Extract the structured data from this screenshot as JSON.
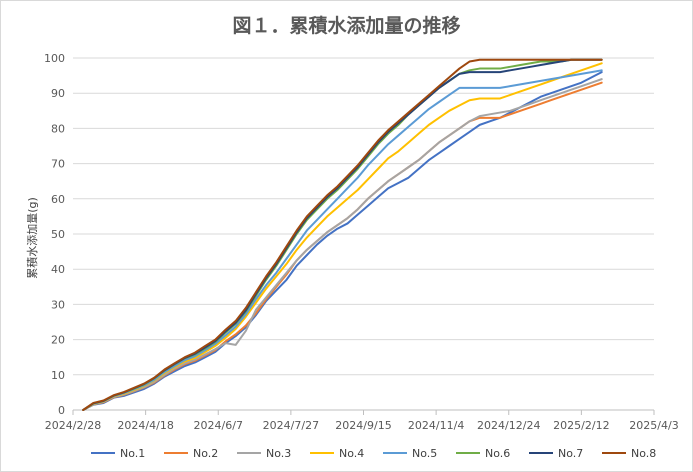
{
  "chart_data": {
    "type": "line",
    "title": "図１．累積水添加量の推移",
    "xlabel": "",
    "ylabel": "累積水添加量(g)",
    "ylim": [
      0,
      100
    ],
    "yticks": [
      0,
      10,
      20,
      30,
      40,
      50,
      60,
      70,
      80,
      90,
      100
    ],
    "xlim": [
      "2024-02-28",
      "2025-04-03"
    ],
    "xticks": [
      "2024/2/28",
      "2024/4/18",
      "2024/6/7",
      "2024/7/27",
      "2024/9/15",
      "2024/11/4",
      "2024/12/24",
      "2025/2/12",
      "2025/4/3"
    ],
    "grid": "horizontal",
    "legend": "bottom",
    "x": [
      "2024-03-06",
      "2024-03-13",
      "2024-03-20",
      "2024-03-27",
      "2024-04-03",
      "2024-04-10",
      "2024-04-17",
      "2024-04-24",
      "2024-05-01",
      "2024-05-08",
      "2024-05-15",
      "2024-05-22",
      "2024-05-29",
      "2024-06-05",
      "2024-06-12",
      "2024-06-19",
      "2024-06-26",
      "2024-07-03",
      "2024-07-10",
      "2024-07-17",
      "2024-07-24",
      "2024-07-31",
      "2024-08-07",
      "2024-08-14",
      "2024-08-21",
      "2024-08-28",
      "2024-09-04",
      "2024-09-11",
      "2024-09-18",
      "2024-09-25",
      "2024-10-02",
      "2024-10-09",
      "2024-10-16",
      "2024-10-23",
      "2024-10-30",
      "2024-11-06",
      "2024-11-13",
      "2024-11-20",
      "2024-11-27",
      "2024-12-04",
      "2024-12-11",
      "2024-12-18",
      "2024-12-25",
      "2025-01-01",
      "2025-01-08",
      "2025-01-15",
      "2025-01-22",
      "2025-01-29",
      "2025-02-05",
      "2025-02-12",
      "2025-02-19",
      "2025-02-26"
    ],
    "series": [
      {
        "name": "No.1",
        "color": "#4472C4",
        "values": [
          0,
          1.5,
          2.0,
          3.5,
          4.0,
          5.0,
          6.0,
          7.5,
          9.5,
          11.0,
          12.5,
          13.5,
          15.0,
          16.5,
          19.0,
          21.0,
          23.5,
          27.0,
          31.0,
          34.0,
          37.0,
          41.0,
          44.0,
          47.0,
          49.5,
          51.5,
          53.0,
          55.5,
          58.0,
          60.5,
          63.0,
          64.5,
          66.0,
          68.5,
          71.0,
          73.0,
          75.0,
          77.0,
          79.0,
          81.0,
          82.0,
          83.0,
          84.5,
          86.0,
          87.5,
          89.0,
          90.0,
          91.0,
          92.0,
          93.0,
          94.5,
          96.0
        ]
      },
      {
        "name": "No.2",
        "color": "#ED7D31",
        "values": [
          0,
          1.6,
          2.2,
          3.6,
          4.3,
          5.3,
          6.4,
          7.8,
          9.8,
          11.5,
          13.0,
          14.0,
          15.5,
          17.0,
          19.5,
          21.5,
          24.0,
          27.5,
          31.5,
          35.0,
          38.5,
          42.5,
          45.5,
          48.0,
          50.5,
          52.5,
          54.5,
          57.0,
          60.0,
          62.5,
          65.0,
          67.0,
          69.0,
          71.0,
          73.5,
          76.0,
          78.0,
          80.0,
          82.0,
          83.0,
          83.0,
          83.0,
          84.0,
          85.0,
          86.0,
          87.0,
          88.0,
          89.0,
          90.0,
          91.0,
          92.0,
          93.0
        ]
      },
      {
        "name": "No.3",
        "color": "#A5A5A5",
        "values": [
          0,
          1.6,
          2.3,
          3.7,
          4.4,
          5.4,
          6.5,
          8.0,
          10.0,
          11.8,
          13.3,
          14.3,
          15.8,
          17.3,
          19.0,
          18.5,
          22.5,
          28.5,
          32.0,
          35.5,
          39.0,
          42.5,
          45.5,
          48.0,
          50.5,
          52.5,
          54.5,
          57.0,
          60.0,
          62.5,
          65.0,
          67.0,
          69.0,
          71.0,
          73.5,
          76.0,
          78.0,
          80.0,
          82.0,
          83.5,
          84.0,
          84.5,
          85.0,
          86.0,
          87.0,
          88.0,
          89.0,
          90.0,
          91.0,
          92.0,
          93.0,
          94.0
        ]
      },
      {
        "name": "No.4",
        "color": "#FFC000",
        "values": [
          0,
          1.7,
          2.4,
          3.9,
          4.6,
          5.7,
          6.8,
          8.4,
          10.5,
          12.2,
          13.8,
          14.8,
          16.5,
          18.2,
          20.5,
          23.0,
          26.5,
          30.5,
          34.5,
          38.0,
          41.5,
          45.5,
          49.0,
          52.0,
          55.0,
          57.5,
          60.0,
          62.5,
          65.5,
          68.5,
          71.5,
          73.5,
          76.0,
          78.5,
          81.0,
          83.0,
          85.0,
          86.5,
          88.0,
          88.5,
          88.5,
          88.5,
          89.5,
          90.5,
          91.5,
          92.5,
          93.5,
          94.5,
          95.5,
          96.5,
          97.5,
          98.5
        ]
      },
      {
        "name": "No.5",
        "color": "#5B9BD5",
        "values": [
          0,
          1.8,
          2.5,
          4.0,
          4.8,
          5.9,
          7.0,
          8.6,
          10.8,
          12.5,
          14.2,
          15.3,
          17.0,
          18.8,
          21.2,
          23.7,
          27.2,
          31.5,
          35.5,
          39.0,
          43.0,
          47.0,
          51.0,
          54.0,
          57.0,
          60.0,
          63.0,
          66.0,
          69.5,
          72.5,
          75.5,
          78.0,
          80.5,
          83.0,
          85.5,
          87.5,
          89.5,
          91.5,
          91.5,
          91.5,
          91.5,
          91.5,
          92.0,
          92.5,
          93.0,
          93.5,
          94.0,
          94.5,
          95.0,
          95.5,
          96.0,
          96.5
        ]
      },
      {
        "name": "No.6",
        "color": "#70AD47",
        "values": [
          0,
          1.9,
          2.6,
          4.1,
          5.0,
          6.1,
          7.3,
          9.0,
          11.2,
          13.0,
          14.7,
          15.8,
          17.5,
          19.3,
          22.0,
          24.5,
          28.0,
          32.5,
          37.0,
          41.0,
          45.5,
          50.0,
          54.0,
          57.0,
          60.0,
          62.5,
          65.5,
          68.5,
          72.0,
          75.5,
          78.5,
          81.0,
          84.0,
          86.5,
          89.0,
          91.5,
          93.5,
          95.5,
          96.5,
          97.0,
          97.0,
          97.0,
          97.5,
          98.0,
          98.5,
          99.0,
          99.0,
          99.0,
          99.5,
          99.5,
          99.5,
          99.5
        ]
      },
      {
        "name": "No.7",
        "color": "#264478",
        "values": [
          0,
          1.9,
          2.6,
          4.1,
          5.0,
          6.2,
          7.4,
          9.1,
          11.3,
          13.1,
          14.8,
          16.0,
          17.8,
          19.6,
          22.3,
          24.8,
          28.3,
          33.0,
          37.5,
          41.5,
          46.0,
          50.5,
          54.5,
          57.5,
          60.5,
          63.0,
          66.0,
          69.0,
          72.5,
          76.0,
          79.0,
          81.5,
          84.0,
          86.5,
          89.0,
          91.5,
          93.5,
          95.5,
          96.0,
          96.0,
          96.0,
          96.0,
          96.5,
          97.0,
          97.5,
          98.0,
          98.5,
          99.0,
          99.5,
          99.5,
          99.5,
          99.5
        ]
      },
      {
        "name": "No.8",
        "color": "#9E480E",
        "values": [
          0,
          2.0,
          2.7,
          4.2,
          5.1,
          6.3,
          7.5,
          9.2,
          11.5,
          13.3,
          15.0,
          16.3,
          18.2,
          20.0,
          22.8,
          25.3,
          29.0,
          33.5,
          38.0,
          42.0,
          46.5,
          51.0,
          55.0,
          58.0,
          61.0,
          63.5,
          66.5,
          69.5,
          73.0,
          76.5,
          79.5,
          82.0,
          84.5,
          87.0,
          89.5,
          92.0,
          94.5,
          97.0,
          99.0,
          99.5,
          99.5,
          99.5,
          99.5,
          99.5,
          99.5,
          99.5,
          99.5,
          99.5,
          99.5,
          99.5,
          99.5,
          99.5
        ]
      }
    ]
  }
}
